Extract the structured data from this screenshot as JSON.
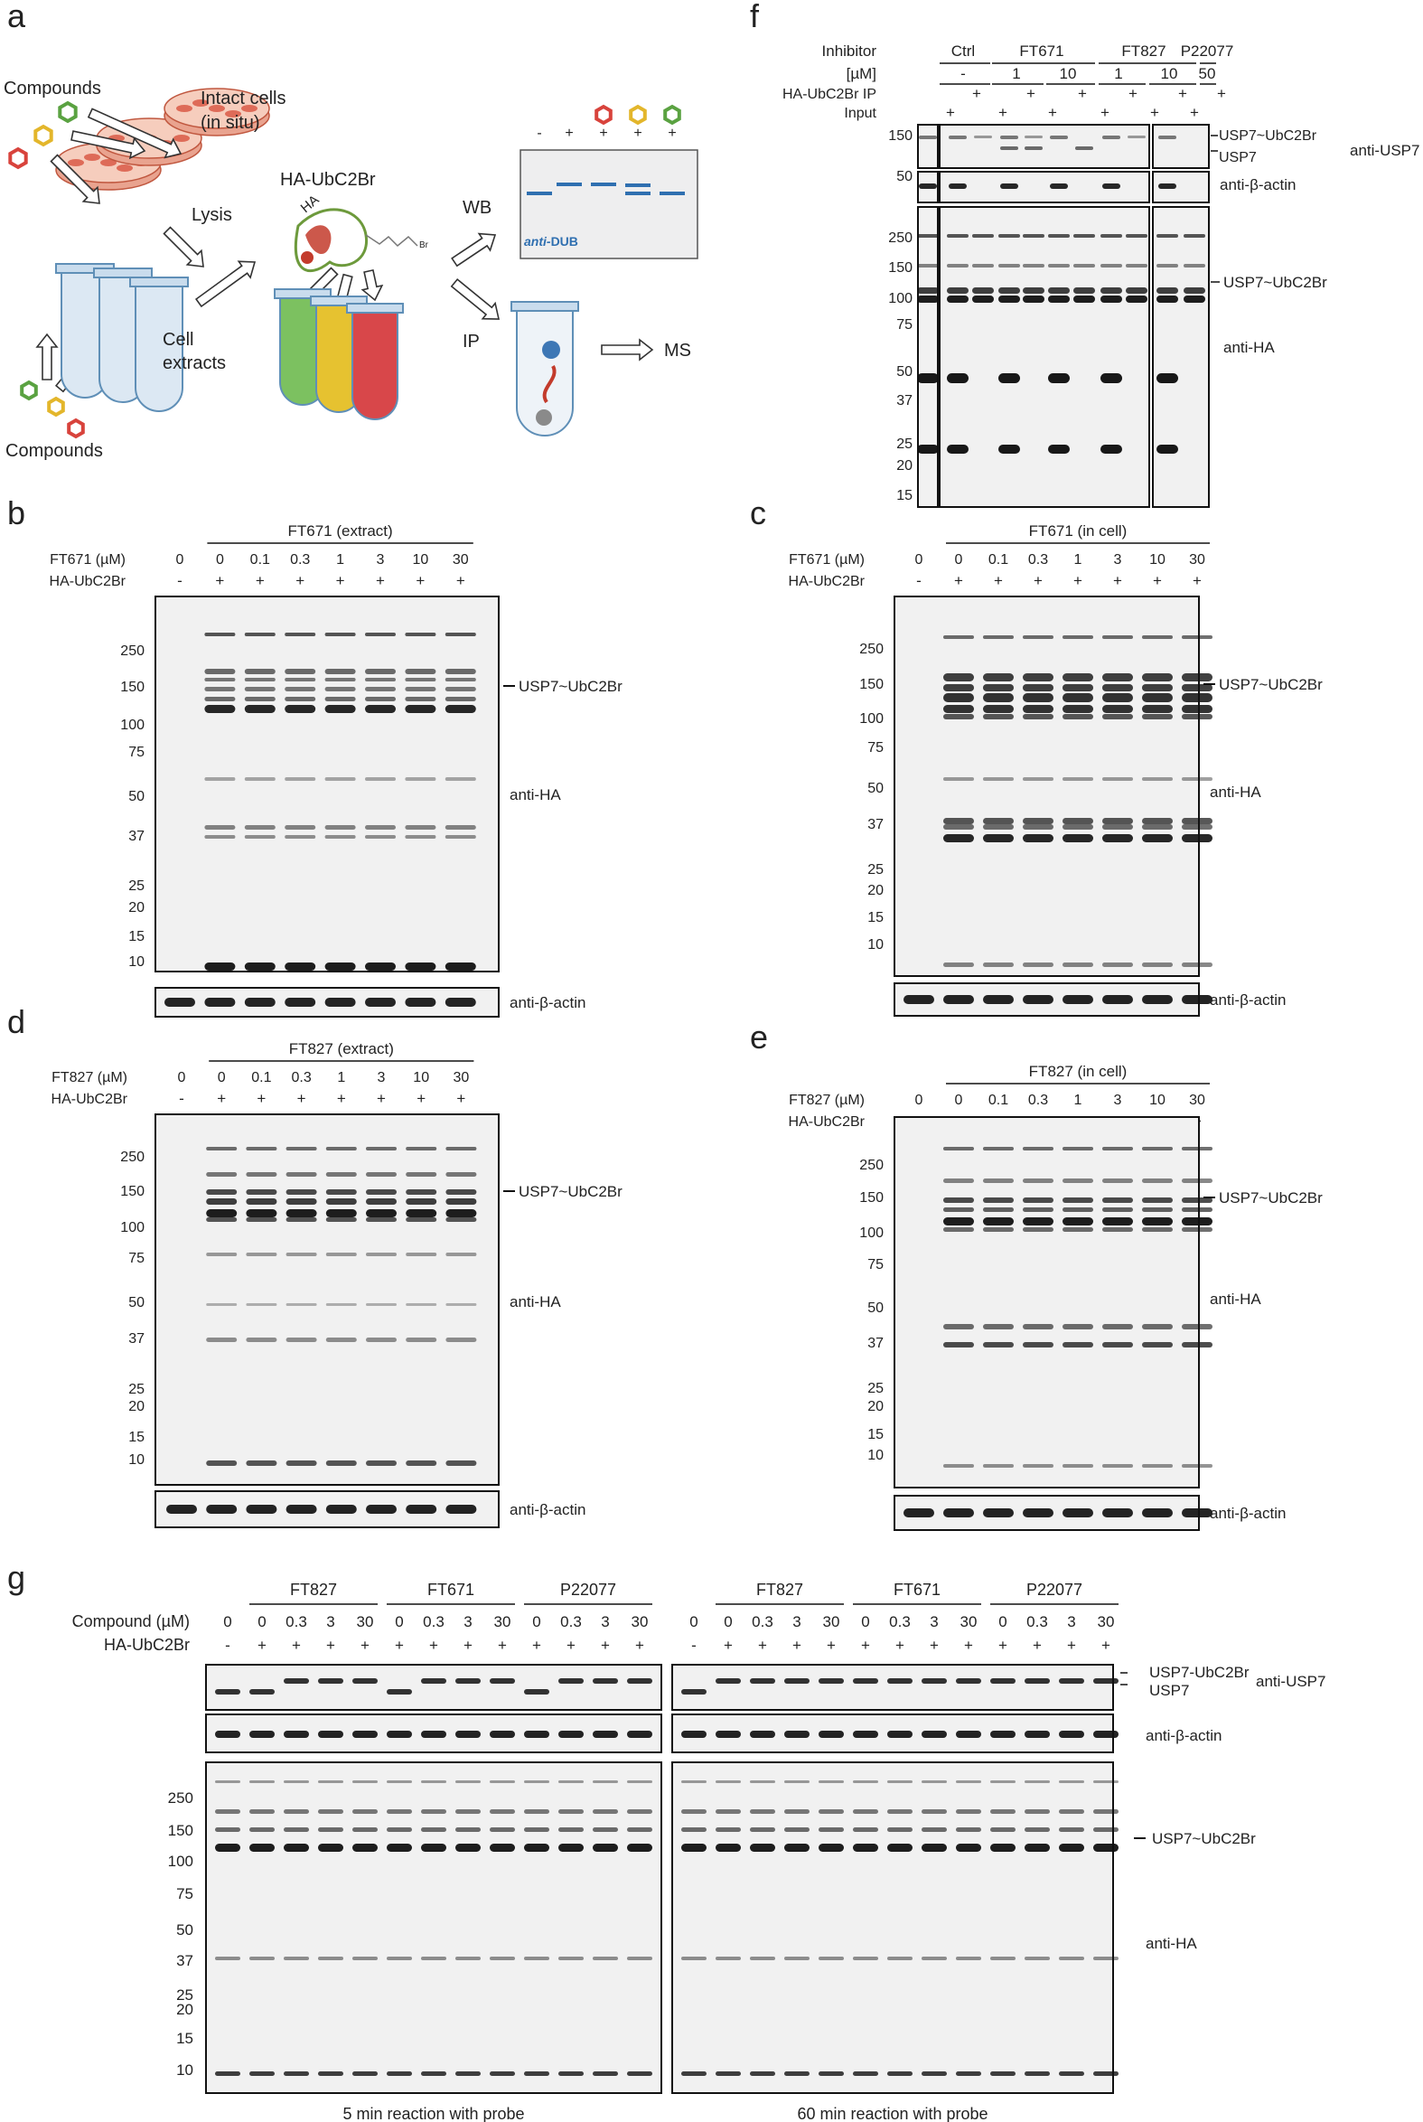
{
  "panel_a": {
    "letter": "a",
    "compounds_top": "Compounds",
    "intact_cells": [
      "Intact cells",
      "(in situ)"
    ],
    "lysis": "Lysis",
    "cell_extracts": [
      "Cell",
      "extracts"
    ],
    "compounds_bottom": "Compounds",
    "probe": "HA-UbC2Br",
    "ha_tag": "HA",
    "wb": "WB",
    "ip": "IP",
    "ms": "MS",
    "blot_signs": [
      "-",
      "+",
      "+",
      "+",
      "+"
    ],
    "anti_prefix": "anti-",
    "anti_suffix": "DUB",
    "colors": {
      "red": "#d8433c",
      "yellow": "#e3b62b",
      "green": "#5aa241",
      "blue": "#2f6fb0"
    }
  },
  "panel_b": {
    "letter": "b",
    "group": "FT671 (extract)",
    "row1_label": "FT671 (µM)",
    "conc": [
      "0",
      "0",
      "0.1",
      "0.3",
      "1",
      "3",
      "10",
      "30"
    ],
    "row2_label": "HA-UbC2Br",
    "probe": [
      "-",
      "+",
      "+",
      "+",
      "+",
      "+",
      "+",
      "+"
    ],
    "markers": [
      "250",
      "150",
      "100",
      "75",
      "50",
      "37",
      "25",
      "20",
      "15",
      "10"
    ],
    "right": [
      "USP7~UbC2Br",
      "anti-HA",
      "anti-β-actin"
    ]
  },
  "panel_c": {
    "letter": "c",
    "group": "FT671 (in cell)",
    "row1_label": "FT671 (µM)",
    "conc": [
      "0",
      "0",
      "0.1",
      "0.3",
      "1",
      "3",
      "10",
      "30"
    ],
    "row2_label": "HA-UbC2Br",
    "probe": [
      "-",
      "+",
      "+",
      "+",
      "+",
      "+",
      "+",
      "+"
    ],
    "markers": [
      "250",
      "150",
      "100",
      "75",
      "50",
      "37",
      "25",
      "20",
      "15",
      "10"
    ],
    "right": [
      "USP7~UbC2Br",
      "anti-HA",
      "anti-β-actin"
    ]
  },
  "panel_d": {
    "letter": "d",
    "group": "FT827 (extract)",
    "row1_label": "FT827 (µM)",
    "conc": [
      "0",
      "0",
      "0.1",
      "0.3",
      "1",
      "3",
      "10",
      "30"
    ],
    "row2_label": "HA-UbC2Br",
    "probe": [
      "-",
      "+",
      "+",
      "+",
      "+",
      "+",
      "+",
      "+"
    ],
    "markers": [
      "250",
      "150",
      "100",
      "75",
      "50",
      "37",
      "25",
      "20",
      "15",
      "10"
    ],
    "right": [
      "USP7~UbC2Br",
      "anti-HA",
      "anti-β-actin"
    ]
  },
  "panel_e": {
    "letter": "e",
    "group": "FT827 (in cell)",
    "row1_label": "FT827 (µM)",
    "conc": [
      "0",
      "0",
      "0.1",
      "0.3",
      "1",
      "3",
      "10",
      "30"
    ],
    "row2_label": "HA-UbC2Br",
    "probe": [
      "-",
      "+",
      "+",
      "+",
      "+",
      "+",
      "+",
      "+"
    ],
    "markers": [
      "250",
      "150",
      "100",
      "75",
      "50",
      "37",
      "25",
      "20",
      "15",
      "10"
    ],
    "right": [
      "USP7~UbC2Br",
      "anti-HA",
      "anti-β-actin"
    ]
  },
  "panel_f": {
    "letter": "f",
    "inhibitor_label": "Inhibitor",
    "groups": [
      "Ctrl",
      "FT671",
      "FT827",
      "P22077"
    ],
    "um_label": "[µM]",
    "conc": [
      "-",
      "1",
      "10",
      "1",
      "10",
      "50"
    ],
    "ip_label": "HA-UbC2Br IP",
    "ip_signs": [
      "+",
      "+",
      "+",
      "+",
      "+",
      "+"
    ],
    "input_label": "Input",
    "input_signs": [
      "+",
      "+",
      "+",
      "+",
      "+",
      "+"
    ],
    "markers_top": [
      "150",
      "50"
    ],
    "markers_bottom": [
      "250",
      "150",
      "100",
      "75",
      "50",
      "37",
      "25",
      "20",
      "15"
    ],
    "right": [
      "USP7~UbC2Br",
      "USP7",
      "anti-USP7",
      "anti-β-actin",
      "USP7~UbC2Br",
      "anti-HA"
    ]
  },
  "panel_g": {
    "letter": "g",
    "compound_label": "Compound (µM)",
    "probe_label": "HA-UbC2Br",
    "groups": [
      "FT827",
      "FT671",
      "P22077"
    ],
    "conc": [
      "0",
      "0",
      "0.3",
      "3",
      "30",
      "0",
      "0.3",
      "3",
      "30",
      "0",
      "0.3",
      "3",
      "30"
    ],
    "probe": [
      "-",
      "+",
      "+",
      "+",
      "+",
      "+",
      "+",
      "+",
      "+",
      "+",
      "+",
      "+",
      "+"
    ],
    "markers": [
      "250",
      "150",
      "100",
      "75",
      "50",
      "37",
      "25",
      "20",
      "15",
      "10"
    ],
    "right": [
      "USP7-UbC2Br",
      "USP7",
      "anti-USP7",
      "anti-β-actin",
      "USP7~UbC2Br",
      "anti-HA"
    ],
    "captions": [
      "5 min reaction with probe",
      "60 min reaction with probe"
    ]
  }
}
